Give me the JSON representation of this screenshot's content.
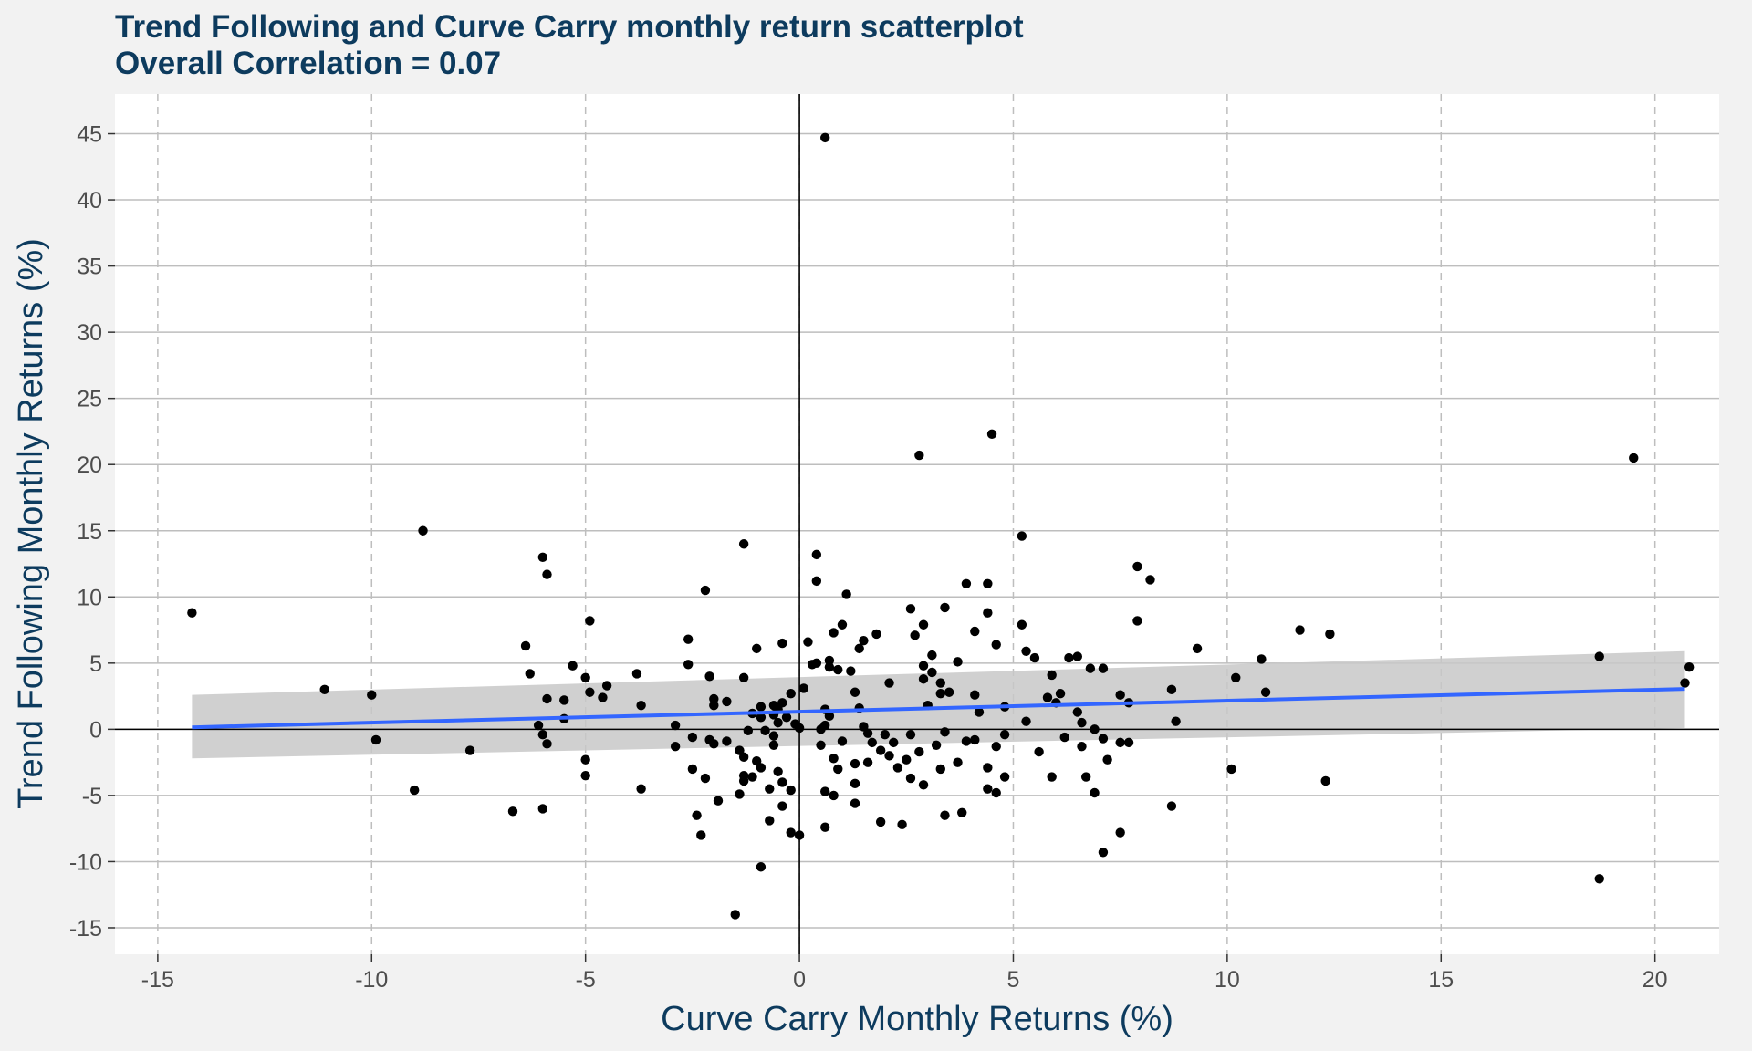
{
  "chart_data": {
    "type": "scatter",
    "title": "Trend Following and Curve Carry monthly return scatterplot",
    "subtitle": "Overall Correlation = 0.07",
    "xlabel": "Curve Carry Monthly Returns (%)",
    "ylabel": "Trend Following Monthly Returns (%)",
    "xlim": [
      -16,
      21.5
    ],
    "ylim": [
      -17,
      48
    ],
    "x_ticks": [
      -15,
      -10,
      -5,
      0,
      5,
      10,
      15,
      20
    ],
    "y_ticks": [
      -15,
      -10,
      -5,
      0,
      5,
      10,
      15,
      20,
      25,
      30,
      35,
      40,
      45
    ],
    "x_tick_labels": [
      "-15",
      "-10",
      "-5",
      "0",
      "5",
      "10",
      "15",
      "20"
    ],
    "y_tick_labels": [
      "-15",
      "-10",
      "-5",
      "0",
      "5",
      "10",
      "15",
      "20",
      "25",
      "30",
      "35",
      "40",
      "45"
    ],
    "grid": true,
    "legend": "none",
    "colors": {
      "points": "#000000",
      "trend_line": "#3366ff",
      "confidence_band": "#c8c8c8",
      "panel_background": "#ffffff",
      "page_background": "#f2f2f2",
      "title_color": "#0d3b5e",
      "gridline_color": "#bebebe"
    },
    "trend_line": {
      "x": [
        -14.2,
        20.7
      ],
      "y": [
        0.15,
        3.05
      ]
    },
    "confidence_band": {
      "x": [
        -14.2,
        20.7
      ],
      "lower": [
        -2.2,
        0.1
      ],
      "upper": [
        2.6,
        5.9
      ]
    },
    "points": [
      [
        0.6,
        44.7
      ],
      [
        4.5,
        22.3
      ],
      [
        2.8,
        20.7
      ],
      [
        19.5,
        20.5
      ],
      [
        -8.8,
        15.0
      ],
      [
        5.2,
        14.6
      ],
      [
        -1.3,
        14.0
      ],
      [
        -6.0,
        13.0
      ],
      [
        0.4,
        13.2
      ],
      [
        7.9,
        12.3
      ],
      [
        -5.9,
        11.7
      ],
      [
        8.2,
        11.3
      ],
      [
        0.4,
        11.2
      ],
      [
        4.4,
        11.0
      ],
      [
        3.9,
        11.0
      ],
      [
        -2.2,
        10.5
      ],
      [
        1.1,
        10.2
      ],
      [
        3.4,
        9.2
      ],
      [
        2.6,
        9.1
      ],
      [
        -14.2,
        8.8
      ],
      [
        4.4,
        8.8
      ],
      [
        -4.9,
        8.2
      ],
      [
        7.9,
        8.2
      ],
      [
        1.0,
        7.9
      ],
      [
        2.9,
        7.9
      ],
      [
        5.2,
        7.9
      ],
      [
        11.7,
        7.5
      ],
      [
        4.1,
        7.4
      ],
      [
        0.8,
        7.3
      ],
      [
        1.8,
        7.2
      ],
      [
        12.4,
        7.2
      ],
      [
        2.7,
        7.1
      ],
      [
        -2.6,
        6.8
      ],
      [
        1.5,
        6.7
      ],
      [
        0.2,
        6.6
      ],
      [
        -0.4,
        6.5
      ],
      [
        4.6,
        6.4
      ],
      [
        -6.4,
        6.3
      ],
      [
        -1.0,
        6.1
      ],
      [
        9.3,
        6.1
      ],
      [
        1.4,
        6.1
      ],
      [
        5.3,
        5.9
      ],
      [
        3.1,
        5.6
      ],
      [
        6.5,
        5.5
      ],
      [
        5.5,
        5.4
      ],
      [
        6.3,
        5.4
      ],
      [
        10.8,
        5.3
      ],
      [
        0.7,
        5.2
      ],
      [
        3.7,
        5.1
      ],
      [
        18.7,
        5.5
      ],
      [
        -5.3,
        4.8
      ],
      [
        0.3,
        4.9
      ],
      [
        0.4,
        5.0
      ],
      [
        2.9,
        4.8
      ],
      [
        0.7,
        4.7
      ],
      [
        6.8,
        4.6
      ],
      [
        7.1,
        4.6
      ],
      [
        -2.6,
        4.9
      ],
      [
        20.8,
        4.7
      ],
      [
        -3.8,
        4.2
      ],
      [
        -6.3,
        4.2
      ],
      [
        0.9,
        4.5
      ],
      [
        1.2,
        4.4
      ],
      [
        3.1,
        4.3
      ],
      [
        5.9,
        4.1
      ],
      [
        -2.1,
        4.0
      ],
      [
        -1.3,
        3.9
      ],
      [
        -5.0,
        3.9
      ],
      [
        10.2,
        3.9
      ],
      [
        2.9,
        3.8
      ],
      [
        3.3,
        3.5
      ],
      [
        2.1,
        3.5
      ],
      [
        -4.5,
        3.3
      ],
      [
        20.7,
        3.5
      ],
      [
        0.1,
        3.1
      ],
      [
        -11.1,
        3.0
      ],
      [
        8.7,
        3.0
      ],
      [
        -4.9,
        2.8
      ],
      [
        1.3,
        2.8
      ],
      [
        3.5,
        2.8
      ],
      [
        10.9,
        2.8
      ],
      [
        3.3,
        2.7
      ],
      [
        -0.2,
        2.7
      ],
      [
        6.1,
        2.7
      ],
      [
        4.1,
        2.6
      ],
      [
        7.5,
        2.6
      ],
      [
        -10.0,
        2.6
      ],
      [
        -4.6,
        2.4
      ],
      [
        5.8,
        2.4
      ],
      [
        -5.9,
        2.3
      ],
      [
        -2.0,
        2.3
      ],
      [
        -5.5,
        2.2
      ],
      [
        -1.7,
        2.1
      ],
      [
        -0.4,
        2.0
      ],
      [
        6.0,
        2.0
      ],
      [
        7.7,
        2.0
      ],
      [
        -3.7,
        1.8
      ],
      [
        -2.0,
        1.8
      ],
      [
        3.0,
        1.8
      ],
      [
        -0.6,
        1.8
      ],
      [
        -0.9,
        1.7
      ],
      [
        4.8,
        1.7
      ],
      [
        1.4,
        1.6
      ],
      [
        -0.5,
        1.5
      ],
      [
        0.6,
        1.5
      ],
      [
        -1.1,
        1.2
      ],
      [
        4.2,
        1.3
      ],
      [
        6.5,
        1.3
      ],
      [
        -0.6,
        1.1
      ],
      [
        0.7,
        1.0
      ],
      [
        -0.9,
        0.9
      ],
      [
        -0.3,
        0.9
      ],
      [
        -5.5,
        0.8
      ],
      [
        5.3,
        0.6
      ],
      [
        8.8,
        0.6
      ],
      [
        6.6,
        0.5
      ],
      [
        -0.5,
        0.5
      ],
      [
        -0.1,
        0.4
      ],
      [
        0.6,
        0.3
      ],
      [
        -6.1,
        0.3
      ],
      [
        -2.9,
        0.3
      ],
      [
        1.5,
        0.2
      ],
      [
        0.0,
        0.1
      ],
      [
        0.5,
        0.0
      ],
      [
        6.9,
        0.0
      ],
      [
        -0.8,
        -0.1
      ],
      [
        -1.2,
        -0.1
      ],
      [
        1.6,
        -0.3
      ],
      [
        3.4,
        -0.2
      ],
      [
        2.0,
        -0.4
      ],
      [
        -6.0,
        -0.4
      ],
      [
        -0.6,
        -0.5
      ],
      [
        2.6,
        -0.4
      ],
      [
        4.8,
        -0.4
      ],
      [
        6.2,
        -0.6
      ],
      [
        -2.5,
        -0.6
      ],
      [
        7.1,
        -0.7
      ],
      [
        -2.1,
        -0.8
      ],
      [
        -9.9,
        -0.8
      ],
      [
        4.1,
        -0.8
      ],
      [
        -1.7,
        -0.9
      ],
      [
        1.0,
        -0.9
      ],
      [
        3.9,
        -0.9
      ],
      [
        1.7,
        -1.0
      ],
      [
        2.2,
        -1.0
      ],
      [
        -2.0,
        -1.1
      ],
      [
        7.5,
        -1.0
      ],
      [
        -5.9,
        -1.1
      ],
      [
        7.7,
        -1.0
      ],
      [
        3.2,
        -1.2
      ],
      [
        0.5,
        -1.2
      ],
      [
        -0.6,
        -1.2
      ],
      [
        6.6,
        -1.3
      ],
      [
        -2.9,
        -1.3
      ],
      [
        4.6,
        -1.3
      ],
      [
        -1.4,
        -1.6
      ],
      [
        1.9,
        -1.6
      ],
      [
        2.8,
        -1.7
      ],
      [
        5.6,
        -1.7
      ],
      [
        -7.7,
        -1.6
      ],
      [
        -1.3,
        -2.1
      ],
      [
        2.1,
        -2.0
      ],
      [
        2.5,
        -2.3
      ],
      [
        0.8,
        -2.2
      ],
      [
        3.7,
        -2.5
      ],
      [
        -1.0,
        -2.4
      ],
      [
        -5.0,
        -2.3
      ],
      [
        1.6,
        -2.5
      ],
      [
        1.3,
        -2.6
      ],
      [
        7.2,
        -2.3
      ],
      [
        2.3,
        -2.9
      ],
      [
        -0.9,
        -2.9
      ],
      [
        4.4,
        -2.9
      ],
      [
        -2.5,
        -3.0
      ],
      [
        0.9,
        -3.0
      ],
      [
        3.3,
        -3.0
      ],
      [
        -0.5,
        -3.2
      ],
      [
        -5.0,
        -3.5
      ],
      [
        4.8,
        -3.6
      ],
      [
        6.7,
        -3.6
      ],
      [
        -1.1,
        -3.6
      ],
      [
        -1.3,
        -3.5
      ],
      [
        2.6,
        -3.7
      ],
      [
        -2.2,
        -3.7
      ],
      [
        5.9,
        -3.6
      ],
      [
        12.3,
        -3.9
      ],
      [
        -1.3,
        -3.9
      ],
      [
        -0.4,
        -4.0
      ],
      [
        1.3,
        -4.1
      ],
      [
        2.9,
        -4.2
      ],
      [
        4.4,
        -4.5
      ],
      [
        -3.7,
        -4.5
      ],
      [
        -9.0,
        -4.6
      ],
      [
        -0.7,
        -4.5
      ],
      [
        -0.2,
        -4.6
      ],
      [
        0.6,
        -4.7
      ],
      [
        4.6,
        -4.8
      ],
      [
        -1.4,
        -4.9
      ],
      [
        6.9,
        -4.8
      ],
      [
        0.8,
        -5.0
      ],
      [
        -1.9,
        -5.4
      ],
      [
        1.3,
        -5.6
      ],
      [
        -0.4,
        -5.8
      ],
      [
        8.7,
        -5.8
      ],
      [
        -6.0,
        -6.0
      ],
      [
        -6.7,
        -6.2
      ],
      [
        3.8,
        -6.3
      ],
      [
        -2.4,
        -6.5
      ],
      [
        -0.7,
        -6.9
      ],
      [
        1.9,
        -7.0
      ],
      [
        2.4,
        -7.2
      ],
      [
        0.6,
        -7.4
      ],
      [
        -0.2,
        -7.8
      ],
      [
        7.5,
        -7.8
      ],
      [
        -2.3,
        -8.0
      ],
      [
        7.1,
        -9.3
      ],
      [
        -0.9,
        -10.4
      ],
      [
        18.7,
        -11.3
      ],
      [
        -1.5,
        -14.0
      ],
      [
        10.1,
        -3.0
      ],
      [
        0.0,
        -8.0
      ],
      [
        3.4,
        -6.5
      ]
    ]
  }
}
